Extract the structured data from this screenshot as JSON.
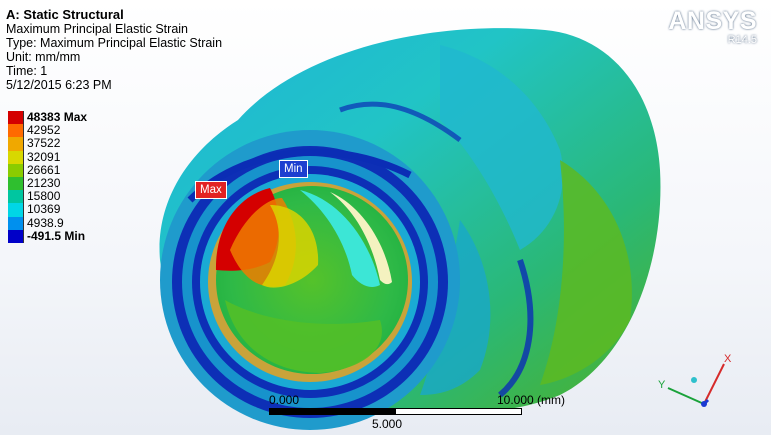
{
  "analysis": {
    "title": "A: Static Structural",
    "result": "Maximum Principal Elastic Strain",
    "type_line": "Type: Maximum Principal Elastic Strain",
    "unit_line": "Unit: mm/mm",
    "time_line": "Time: 1",
    "date_line": "5/12/2015 6:23 PM"
  },
  "legend": {
    "entries": [
      {
        "label": "48383 Max",
        "color": "#d40000"
      },
      {
        "label": "42952",
        "color": "#ff6a00"
      },
      {
        "label": "37522",
        "color": "#f0a800"
      },
      {
        "label": "32091",
        "color": "#d8d800"
      },
      {
        "label": "26661",
        "color": "#8acc00"
      },
      {
        "label": "21230",
        "color": "#2fbf2f"
      },
      {
        "label": "15800",
        "color": "#00c6a0"
      },
      {
        "label": "10369",
        "color": "#00d6e6"
      },
      {
        "label": "4938.9",
        "color": "#0090ee"
      },
      {
        "label": "-491.5 Min",
        "color": "#0000c8"
      }
    ]
  },
  "brand": {
    "name": "ANSYS",
    "version": "R14.5"
  },
  "probes": {
    "min_label": "Min",
    "max_label": "Max"
  },
  "scale": {
    "left": "0.000",
    "right": "10.000 (mm)",
    "middle": "5.000"
  },
  "triad": {
    "x": "X",
    "y": "Y"
  },
  "icons": [
    "coordinate-triad-icon"
  ]
}
